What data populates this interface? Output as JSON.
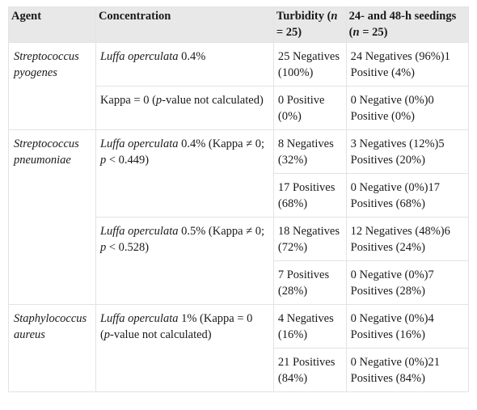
{
  "header": {
    "agent": "Agent",
    "concentration": "Concentration",
    "turbidity_pre": "Turbidity (",
    "turbidity_n": "n",
    "turbidity_post": " = 25)",
    "seedings_pre": "24- and 48-h seedings (",
    "seedings_n": "n",
    "seedings_post": " = 25)"
  },
  "groups": [
    {
      "agent_line1": "Streptococcus",
      "agent_line2": "pyogenes",
      "blocks": [
        {
          "conc_italic": "Luffa operculata",
          "conc_text": " 0.4%",
          "rows": [
            {
              "turbidity": "25 Negatives (100%)",
              "seedings": "24 Negatives (96%)1 Positive (4%)"
            }
          ]
        },
        {
          "conc_pre": "Kappa = 0 (",
          "conc_italic2": "p",
          "conc_post": "-value not calculated)",
          "rows": [
            {
              "turbidity": "0 Positive (0%)",
              "seedings": "0 Negative (0%)0 Positive (0%)"
            }
          ]
        }
      ]
    },
    {
      "agent_line1": "Streptococcus",
      "agent_line2": "pneumoniae",
      "blocks": [
        {
          "conc_italic": "Luffa operculata",
          "conc_text": " 0.4% (Kappa ≠ 0; ",
          "conc_p": "p",
          "conc_tail": " < 0.449)",
          "rows": [
            {
              "turbidity": "8 Negatives (32%)",
              "seedings": "3 Negatives (12%)5 Positives (20%)"
            },
            {
              "turbidity": "17 Positives (68%)",
              "seedings": "0 Negative (0%)17 Positives (68%)"
            }
          ]
        },
        {
          "conc_italic": "Luffa operculata",
          "conc_text": " 0.5% (Kappa ≠ 0; ",
          "conc_p": "p",
          "conc_tail": " < 0.528)",
          "rows": [
            {
              "turbidity": "18 Negatives (72%)",
              "seedings": "12 Negatives (48%)6 Positives (24%)"
            },
            {
              "turbidity": "7 Positives (28%)",
              "seedings": "0 Negative (0%)7 Positives (28%)"
            }
          ]
        }
      ]
    },
    {
      "agent_line1": "Staphylococcus",
      "agent_line2": "aureus",
      "blocks": [
        {
          "conc_italic": "Luffa operculata",
          "conc_text": " 1% (Kappa = 0 (",
          "conc_p": "p",
          "conc_tail": "-value not calculated)",
          "rows": [
            {
              "turbidity": "4 Negatives (16%)",
              "seedings": "0 Negative (0%)4 Positives (16%)"
            },
            {
              "turbidity": "21 Positives (84%)",
              "seedings": "0 Negative (0%)21 Positives (84%)"
            }
          ]
        }
      ]
    }
  ]
}
